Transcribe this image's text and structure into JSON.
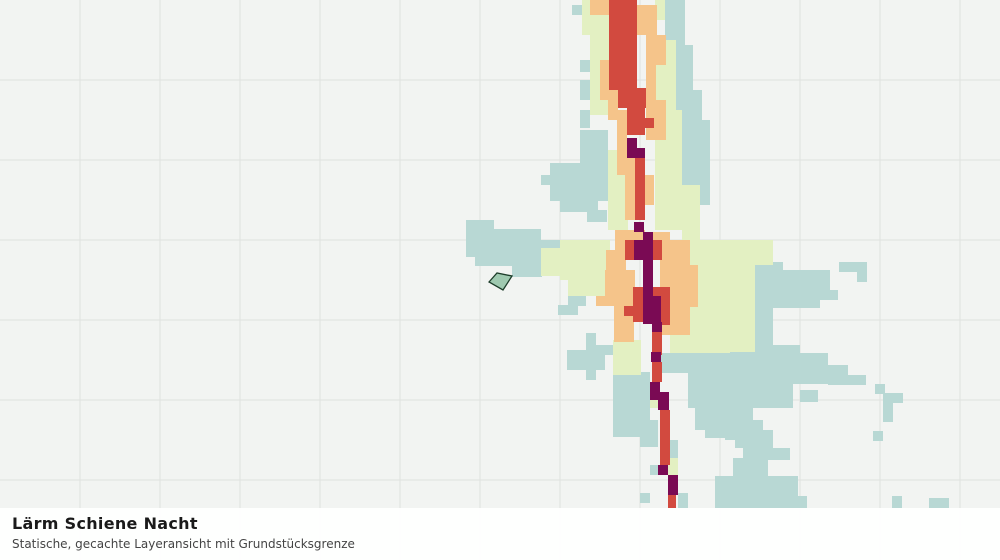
{
  "panel": {
    "title": "Lärm Schiene Nacht",
    "subtitle": "Statische, gecachte Layeransicht mit Grundstücksgrenze"
  }
}
